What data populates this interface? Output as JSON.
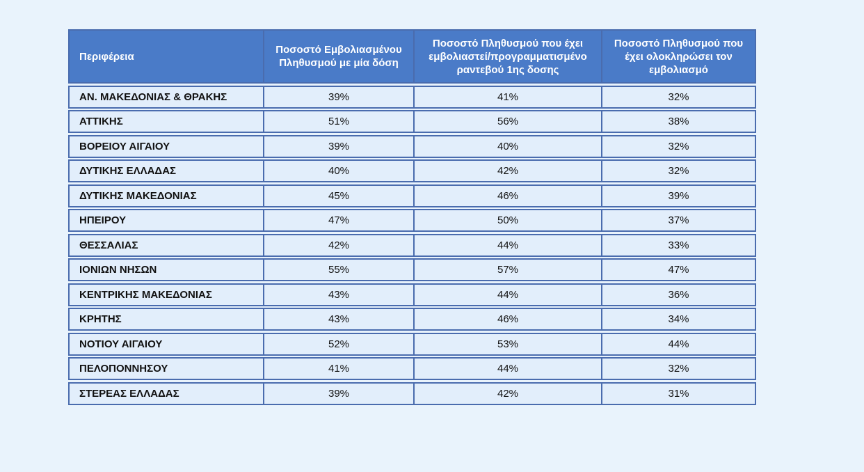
{
  "colors": {
    "page_bg": "#e9f3fc",
    "header_bg": "#4a7bc8",
    "cell_bg": "#e2eefb",
    "border": "#4a6cae"
  },
  "table": {
    "columns": [
      "Περιφέρεια",
      "Ποσοστό Εμβολιασμένου Πληθυσμού με μία δόση",
      "Ποσοστό Πληθυσμού  που έχει εμβολιαστεί/προγραμματισμένο ραντεβού 1ης δοσης",
      "Ποσοστό Πληθυσμού που έχει ολοκληρώσει τον εμβολιασμό"
    ],
    "rows": [
      {
        "region": "ΑΝ. ΜΑΚΕΔΟΝΙΑΣ & ΘΡΑΚΗΣ",
        "dose1": "39%",
        "scheduled": "41%",
        "completed": "32%"
      },
      {
        "region": "ΑΤΤΙΚΗΣ",
        "dose1": "51%",
        "scheduled": "56%",
        "completed": "38%"
      },
      {
        "region": "ΒΟΡΕΙΟΥ ΑΙΓΑΙΟΥ",
        "dose1": "39%",
        "scheduled": "40%",
        "completed": "32%"
      },
      {
        "region": "ΔΥΤΙΚΗΣ ΕΛΛΑΔΑΣ",
        "dose1": "40%",
        "scheduled": "42%",
        "completed": "32%"
      },
      {
        "region": "ΔΥΤΙΚΗΣ ΜΑΚΕΔΟΝΙΑΣ",
        "dose1": "45%",
        "scheduled": "46%",
        "completed": "39%"
      },
      {
        "region": "ΗΠΕΙΡΟΥ",
        "dose1": "47%",
        "scheduled": "50%",
        "completed": "37%"
      },
      {
        "region": "ΘΕΣΣΑΛΙΑΣ",
        "dose1": "42%",
        "scheduled": "44%",
        "completed": "33%"
      },
      {
        "region": "ΙΟΝΙΩΝ ΝΗΣΩΝ",
        "dose1": "55%",
        "scheduled": "57%",
        "completed": "47%"
      },
      {
        "region": "ΚΕΝΤΡΙΚΗΣ ΜΑΚΕΔΟΝΙΑΣ",
        "dose1": "43%",
        "scheduled": "44%",
        "completed": "36%"
      },
      {
        "region": "ΚΡΗΤΗΣ",
        "dose1": "43%",
        "scheduled": "46%",
        "completed": "34%"
      },
      {
        "region": "ΝΟΤΙΟΥ ΑΙΓΑΙΟΥ",
        "dose1": "52%",
        "scheduled": "53%",
        "completed": "44%"
      },
      {
        "region": "ΠΕΛΟΠΟΝΝΗΣΟΥ",
        "dose1": "41%",
        "scheduled": "44%",
        "completed": "32%"
      },
      {
        "region": "ΣΤΕΡΕΑΣ ΕΛΛΑΔΑΣ",
        "dose1": "39%",
        "scheduled": "42%",
        "completed": "31%"
      }
    ]
  },
  "chart_data": {
    "type": "table",
    "columns": [
      "Περιφέρεια",
      "Ποσοστό Εμβολιασμένου Πληθυσμού με μία δόση",
      "Ποσοστό Πληθυσμού  που έχει εμβολιαστεί/προγραμματισμένο ραντεβού 1ης δοσης",
      "Ποσοστό Πληθυσμού που έχει ολοκληρώσει τον εμβολιασμό"
    ],
    "rows": [
      [
        "ΑΝ. ΜΑΚΕΔΟΝΙΑΣ & ΘΡΑΚΗΣ",
        "39%",
        "41%",
        "32%"
      ],
      [
        "ΑΤΤΙΚΗΣ",
        "51%",
        "56%",
        "38%"
      ],
      [
        "ΒΟΡΕΙΟΥ ΑΙΓΑΙΟΥ",
        "39%",
        "40%",
        "32%"
      ],
      [
        "ΔΥΤΙΚΗΣ ΕΛΛΑΔΑΣ",
        "40%",
        "42%",
        "32%"
      ],
      [
        "ΔΥΤΙΚΗΣ ΜΑΚΕΔΟΝΙΑΣ",
        "45%",
        "46%",
        "39%"
      ],
      [
        "ΗΠΕΙΡΟΥ",
        "47%",
        "50%",
        "37%"
      ],
      [
        "ΘΕΣΣΑΛΙΑΣ",
        "42%",
        "44%",
        "33%"
      ],
      [
        "ΙΟΝΙΩΝ ΝΗΣΩΝ",
        "55%",
        "57%",
        "47%"
      ],
      [
        "ΚΕΝΤΡΙΚΗΣ ΜΑΚΕΔΟΝΙΑΣ",
        "43%",
        "44%",
        "36%"
      ],
      [
        "ΚΡΗΤΗΣ",
        "43%",
        "46%",
        "34%"
      ],
      [
        "ΝΟΤΙΟΥ ΑΙΓΑΙΟΥ",
        "52%",
        "53%",
        "44%"
      ],
      [
        "ΠΕΛΟΠΟΝΝΗΣΟΥ",
        "41%",
        "44%",
        "32%"
      ],
      [
        "ΣΤΕΡΕΑΣ ΕΛΛΑΔΑΣ",
        "39%",
        "42%",
        "31%"
      ]
    ]
  }
}
